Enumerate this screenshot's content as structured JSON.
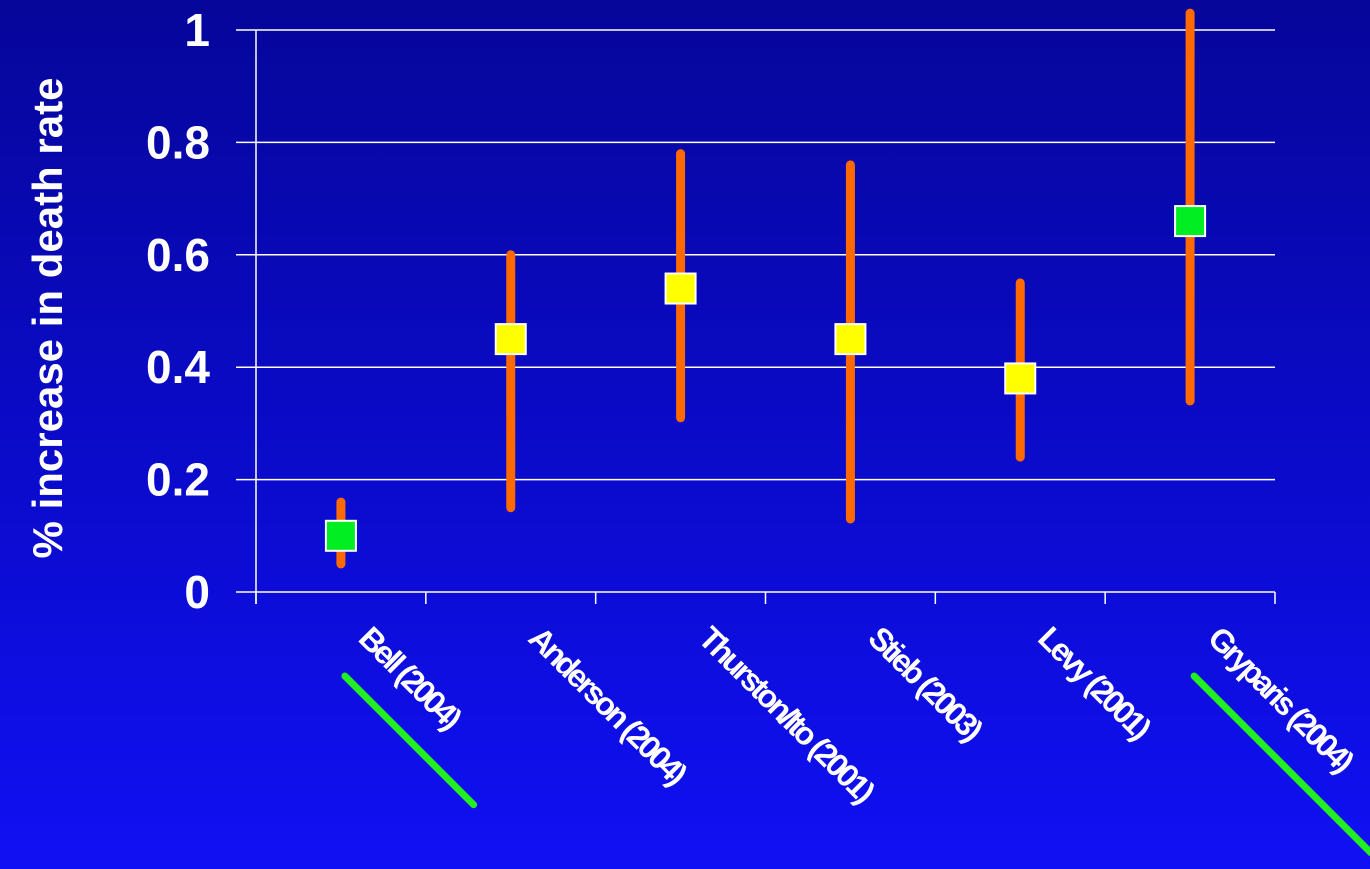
{
  "colors": {
    "background_top": "#06069a",
    "background_bottom": "#1010f4",
    "error_bar": "#ff6a00",
    "marker_green": "#00ee22",
    "marker_yellow": "#ffff00",
    "underline": "#22ee22",
    "grid": "#ffffff",
    "text": "#ffffff"
  },
  "chart_data": {
    "type": "scatter",
    "ylabel": "% increase in death rate",
    "xlabel": "",
    "ylim": [
      0,
      1
    ],
    "yticks": [
      "0",
      "0.2",
      "0.4",
      "0.6",
      "0.8",
      "1"
    ],
    "grid": true,
    "categories": [
      "Bell (2004)",
      "Anderson (2004)",
      "Thurston/Ito (2001)",
      "Stieb (2003)",
      "Levy (2001)",
      "Gryparis (2004)"
    ],
    "points": [
      {
        "label": "Bell (2004)",
        "estimate": 0.1,
        "lower": 0.05,
        "upper": 0.16,
        "marker": "green",
        "underlined": true
      },
      {
        "label": "Anderson (2004)",
        "estimate": 0.45,
        "lower": 0.15,
        "upper": 0.6,
        "marker": "yellow",
        "underlined": false
      },
      {
        "label": "Thurston/Ito (2001)",
        "estimate": 0.54,
        "lower": 0.31,
        "upper": 0.78,
        "marker": "yellow",
        "underlined": false
      },
      {
        "label": "Stieb (2003)",
        "estimate": 0.45,
        "lower": 0.13,
        "upper": 0.76,
        "marker": "yellow",
        "underlined": false
      },
      {
        "label": "Levy (2001)",
        "estimate": 0.38,
        "lower": 0.24,
        "upper": 0.55,
        "marker": "yellow",
        "underlined": false
      },
      {
        "label": "Gryparis (2004)",
        "estimate": 0.66,
        "lower": 0.34,
        "upper": 1.03,
        "marker": "green",
        "underlined": true
      }
    ]
  }
}
